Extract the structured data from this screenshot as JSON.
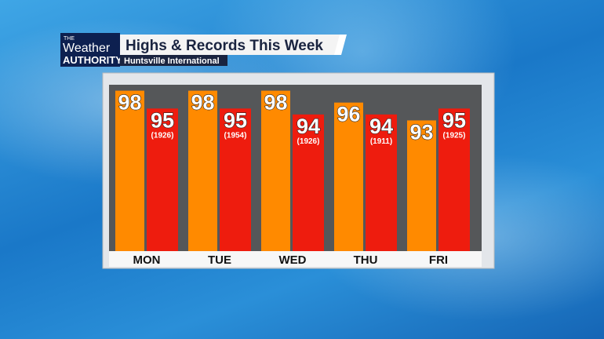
{
  "chart_data": {
    "type": "bar",
    "brand": [
      "THE",
      "Weather",
      "AUTHORITY"
    ],
    "title": "Highs & Records This Week",
    "subtitle": "Huntsville International",
    "categories": [
      "MON",
      "TUE",
      "WED",
      "THU",
      "FRI"
    ],
    "series": [
      {
        "color": "#ff8a00",
        "values": [
          98,
          98,
          98,
          96,
          93
        ]
      },
      {
        "color": "#ee1c0e",
        "values": [
          95,
          95,
          94,
          94,
          95
        ],
        "labels": [
          "(1926)",
          "(1954)",
          "(1926)",
          "(1911)",
          "(1925)"
        ]
      }
    ],
    "ylim": [
      71,
      99
    ]
  }
}
